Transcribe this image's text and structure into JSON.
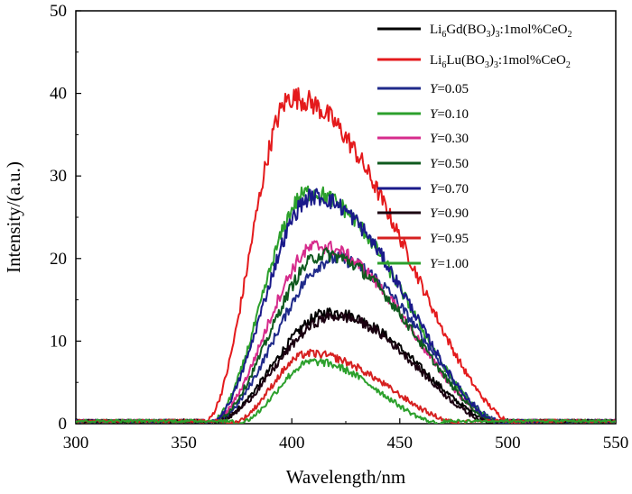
{
  "chart_data": {
    "type": "line",
    "xlabel": "Wavelength/nm",
    "ylabel": "Intensity/(a.u.)",
    "xlim": [
      300,
      550
    ],
    "ylim": [
      0,
      50
    ],
    "x_ticks": [
      300,
      350,
      400,
      450,
      500,
      550
    ],
    "y_ticks": [
      0,
      10,
      20,
      30,
      40,
      50
    ],
    "legend_position": "top-right",
    "series": [
      {
        "name": "Li6Gd(BO3)3:1mol%CeO2",
        "legend": {
          "base": "Li",
          "sub1": "6",
          "mid1": "Gd(BO",
          "sub2": "3",
          "mid2": ")",
          "sub3": "3",
          "mid3": ":1mol%CeO",
          "sub4": "2"
        },
        "color": "#000000",
        "peak_x": 418,
        "peak_y": 13.5,
        "onset": 360,
        "end": 498
      },
      {
        "name": "Li6Lu(BO3)3:1mol%CeO2",
        "legend": {
          "base": "Li",
          "sub1": "6",
          "mid1": "Lu(BO",
          "sub2": "3",
          "mid2": ")",
          "sub3": "3",
          "mid3": ":1mol%CeO",
          "sub4": "2"
        },
        "color": "#e41a1c",
        "peak_x": 400,
        "peak_y": 39.5,
        "onset": 358,
        "end": 505
      },
      {
        "name": "Y=0.05",
        "legend": {
          "var": "Y",
          "eq": "=0.05"
        },
        "color": "#1f2a8a",
        "peak_x": 420,
        "peak_y": 20.0,
        "onset": 360,
        "end": 500
      },
      {
        "name": "Y=0.10",
        "legend": {
          "var": "Y",
          "eq": "=0.10"
        },
        "color": "#2ca02c",
        "peak_x": 408,
        "peak_y": 28.0,
        "onset": 360,
        "end": 498
      },
      {
        "name": "Y=0.30",
        "legend": {
          "var": "Y",
          "eq": "=0.30"
        },
        "color": "#d62c8c",
        "peak_x": 412,
        "peak_y": 21.5,
        "onset": 360,
        "end": 498
      },
      {
        "name": "Y=0.50",
        "legend": {
          "var": "Y",
          "eq": "=0.50"
        },
        "color": "#0f5a1e",
        "peak_x": 415,
        "peak_y": 20.5,
        "onset": 360,
        "end": 498
      },
      {
        "name": "Y=0.70",
        "legend": {
          "var": "Y",
          "eq": "=0.70"
        },
        "color": "#1a1a8a",
        "peak_x": 410,
        "peak_y": 27.5,
        "onset": 360,
        "end": 498
      },
      {
        "name": "Y=0.90",
        "legend": {
          "var": "Y",
          "eq": "=0.90"
        },
        "color": "#1a0010",
        "peak_x": 420,
        "peak_y": 13.0,
        "onset": 360,
        "end": 495
      },
      {
        "name": "Y=0.95",
        "legend": {
          "var": "Y",
          "eq": "=0.95"
        },
        "color": "#d62020",
        "peak_x": 408,
        "peak_y": 8.5,
        "onset": 370,
        "end": 480
      },
      {
        "name": "Y=1.00",
        "legend": {
          "var": "Y",
          "eq": "=1.00"
        },
        "color": "#2ca02c",
        "peak_x": 410,
        "peak_y": 7.5,
        "onset": 373,
        "end": 470
      }
    ]
  }
}
